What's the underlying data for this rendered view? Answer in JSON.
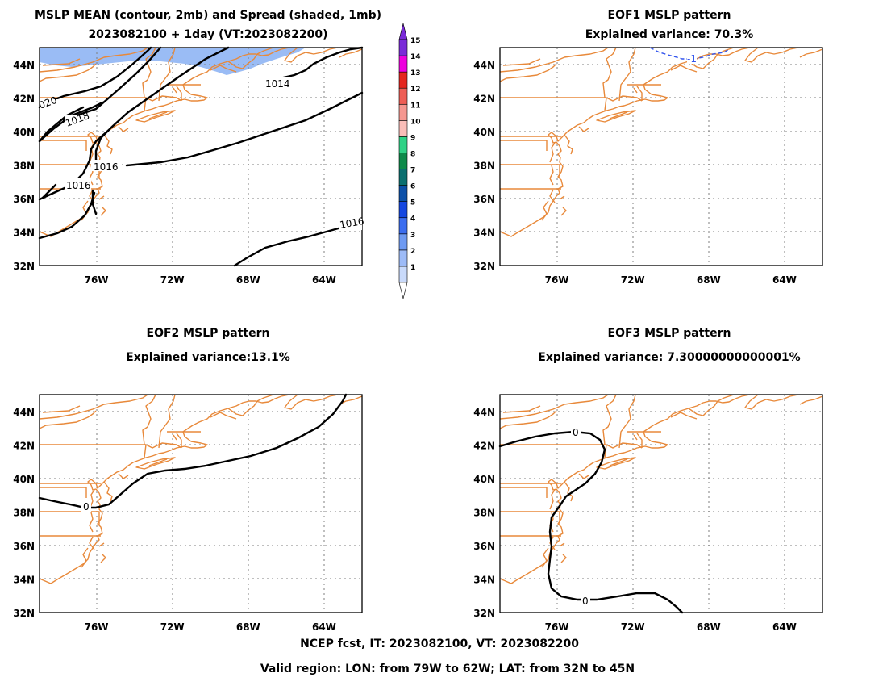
{
  "domain_extent": {
    "lon_min": -79,
    "lon_max": -62,
    "lat_min": 32,
    "lat_max": 45
  },
  "axes": {
    "lat_ticks": [
      32,
      34,
      36,
      38,
      40,
      42,
      44
    ],
    "lat_labels": [
      "32N",
      "34N",
      "36N",
      "38N",
      "40N",
      "42N",
      "44N"
    ],
    "lon_ticks": [
      -76,
      -72,
      -68,
      -64
    ],
    "lon_labels": [
      "76W",
      "72W",
      "68W",
      "64W"
    ],
    "grid": "dotted"
  },
  "colors": {
    "coastline": "#E8893A",
    "spread_shade": "#9ABCF5",
    "contour": "#000000",
    "eof1_contour": "#3355EE"
  },
  "panels": [
    {
      "id": "mslp-mean",
      "title": "MSLP MEAN (contour, 2mb) and Spread (shaded, 1mb)",
      "subtitle": "2023082100 + 1day (VT:2023082200)",
      "contour_labels": [
        "020",
        "1018",
        "1016",
        "1016",
        "1014",
        "1016"
      ]
    },
    {
      "id": "eof1",
      "title": "EOF1 MSLP pattern",
      "subtitle": "Explained variance: 70.3%",
      "contour_labels": [
        "-1"
      ],
      "contour_style": "dashed"
    },
    {
      "id": "eof2",
      "title": "EOF2 MSLP pattern",
      "subtitle": "Explained variance:13.1%",
      "contour_labels": [
        "0"
      ]
    },
    {
      "id": "eof3",
      "title": "EOF3 MSLP pattern",
      "subtitle": "Explained variance: 7.30000000000001%",
      "contour_labels": [
        "0",
        "0"
      ]
    }
  ],
  "colorbar": {
    "labels": [
      "1",
      "2",
      "3",
      "4",
      "5",
      "6",
      "7",
      "8",
      "9",
      "10",
      "11",
      "12",
      "13",
      "14",
      "15"
    ],
    "colors": [
      "#C9DAFB",
      "#9DBBF7",
      "#6E9AF2",
      "#3B6DEF",
      "#1547E0",
      "#0C50A8",
      "#0B6F6F",
      "#0E8A4A",
      "#2FD286",
      "#F9BDB8",
      "#F59790",
      "#EE5E55",
      "#E5261F",
      "#EE00DE",
      "#7A2BD8"
    ]
  },
  "footer": {
    "line1": "NCEP fcst, IT: 2023082100, VT: 2023082200",
    "line2": "Valid region: LON: from 79W to 62W; LAT: from 32N to 45N"
  }
}
